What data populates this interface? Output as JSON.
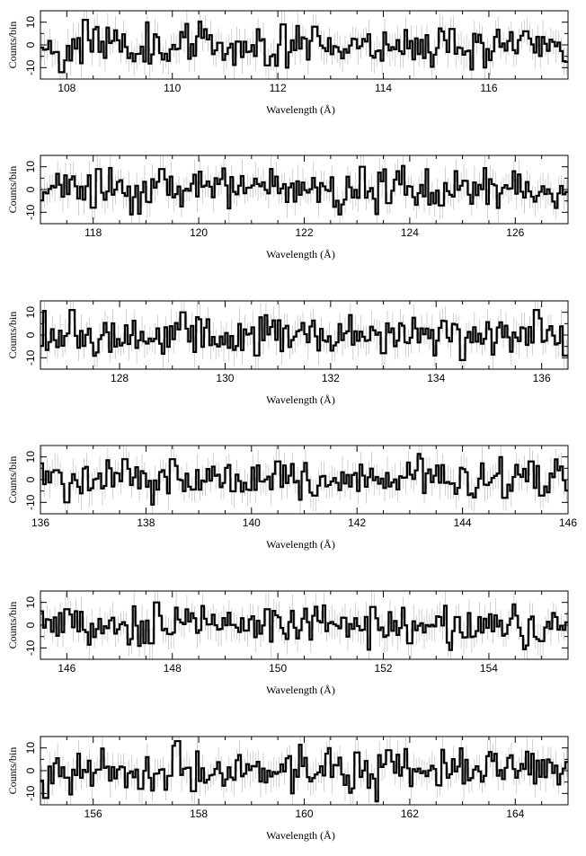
{
  "chart_data": [
    {
      "type": "line",
      "xlabel": "Wavelength (Å)",
      "ylabel": "Counts/bin",
      "xlim": [
        107.5,
        117.5
      ],
      "ylim": [
        -15,
        15
      ],
      "xticks": [
        108,
        110,
        112,
        114,
        116
      ],
      "yticks": [
        -10,
        0,
        10
      ],
      "features": [
        [
          108.35,
          11
        ],
        [
          107.9,
          -12
        ],
        [
          112.1,
          9
        ],
        [
          111.8,
          -9
        ],
        [
          112.7,
          8
        ],
        [
          115.3,
          7
        ],
        [
          116.7,
          6
        ]
      ],
      "seed": 11
    },
    {
      "type": "line",
      "xlabel": "Wavelength (Å)",
      "ylabel": "Counts/bin",
      "xlim": [
        117.0,
        127.0
      ],
      "ylim": [
        -15,
        15
      ],
      "xticks": [
        118,
        120,
        122,
        124,
        126
      ],
      "yticks": [
        -10,
        0,
        10
      ],
      "features": [
        [
          118.1,
          9
        ],
        [
          119.3,
          9
        ],
        [
          123.1,
          10
        ],
        [
          123.6,
          -6
        ],
        [
          124.6,
          -7
        ],
        [
          118.0,
          -8
        ]
      ],
      "seed": 23
    },
    {
      "type": "line",
      "xlabel": "Wavelength (Å)",
      "ylabel": "Counts/bin",
      "xlim": [
        126.5,
        136.5
      ],
      "ylim": [
        -15,
        15
      ],
      "xticks": [
        128,
        130,
        132,
        134,
        136
      ],
      "yticks": [
        -10,
        0,
        10
      ],
      "features": [
        [
          127.1,
          11
        ],
        [
          129.2,
          10
        ],
        [
          130.6,
          -9
        ],
        [
          133.0,
          -8
        ],
        [
          134.5,
          -11
        ],
        [
          135.9,
          11
        ],
        [
          136.45,
          -9
        ]
      ],
      "seed": 37
    },
    {
      "type": "line",
      "xlabel": "Wavelength (Å)",
      "ylabel": "Counts/bin",
      "xlim": [
        136.0,
        146.0
      ],
      "ylim": [
        -15,
        15
      ],
      "xticks": [
        136,
        138,
        140,
        142,
        144,
        146
      ],
      "yticks": [
        -10,
        0,
        10
      ],
      "features": [
        [
          136.5,
          -10
        ],
        [
          137.6,
          9
        ],
        [
          138.5,
          9
        ],
        [
          140.5,
          8
        ],
        [
          141.2,
          -7
        ],
        [
          144.8,
          -8
        ],
        [
          145.3,
          8
        ],
        [
          145.5,
          -7
        ]
      ],
      "seed": 41
    },
    {
      "type": "line",
      "xlabel": "Wavelength (Å)",
      "ylabel": "Counts/bin",
      "xlim": [
        145.5,
        155.5
      ],
      "ylim": [
        -15,
        15
      ],
      "xticks": [
        146,
        148,
        150,
        152,
        154
      ],
      "yticks": [
        -10,
        0,
        10
      ],
      "features": [
        [
          146.0,
          7
        ],
        [
          147.7,
          10
        ],
        [
          147.6,
          -8
        ],
        [
          149.8,
          7
        ],
        [
          151.8,
          8
        ],
        [
          152.5,
          -8
        ],
        [
          155.0,
          -7
        ]
      ],
      "seed": 53
    },
    {
      "type": "line",
      "xlabel": "Wavelength (Å)",
      "ylabel": "Counts/bin",
      "xlim": [
        155.0,
        165.0
      ],
      "ylim": [
        -15,
        15
      ],
      "xticks": [
        156,
        158,
        160,
        162,
        164
      ],
      "yticks": [
        -10,
        0,
        10
      ],
      "features": [
        [
          155.1,
          -12
        ],
        [
          157.6,
          13
        ],
        [
          157.9,
          -9
        ],
        [
          156.9,
          -8
        ],
        [
          161.0,
          8
        ],
        [
          161.6,
          9
        ]
      ],
      "seed": 67
    }
  ]
}
